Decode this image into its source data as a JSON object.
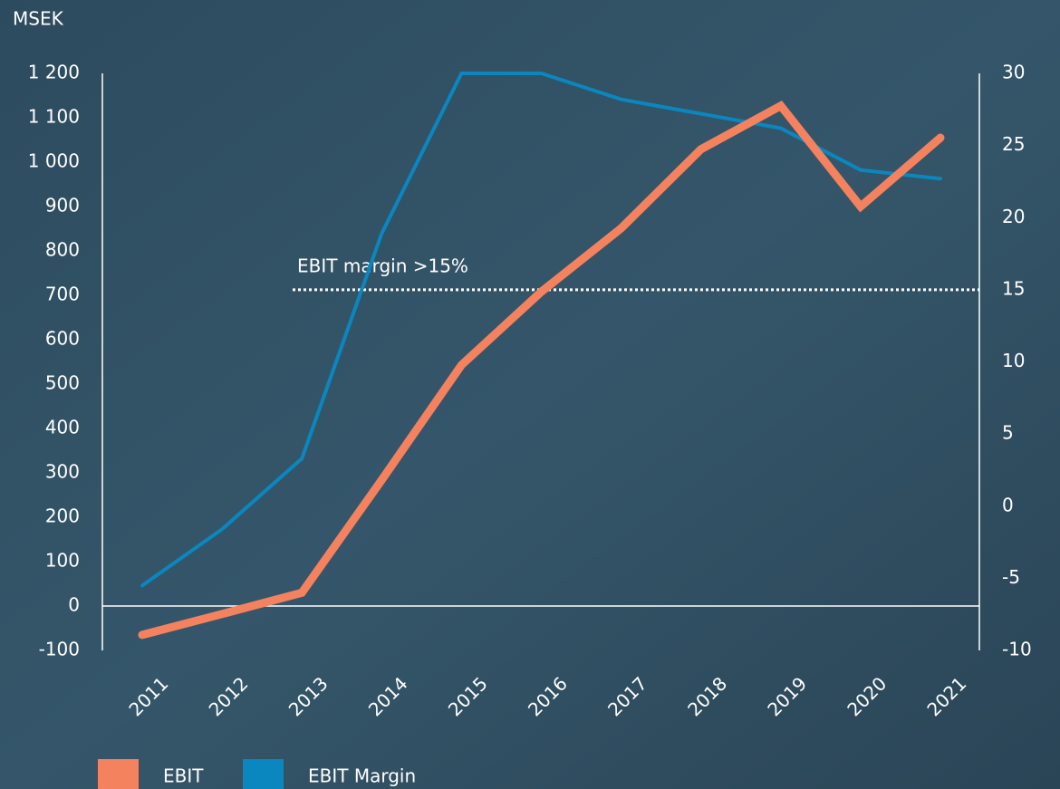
{
  "chart_data": {
    "type": "line",
    "y_axis_label": "MSEK",
    "categories": [
      "2011",
      "2012",
      "2013",
      "2014",
      "2015",
      "2016",
      "2017",
      "2018",
      "2019",
      "2020",
      "2021"
    ],
    "series": [
      {
        "name": "EBIT",
        "color": "#f4825f",
        "axis": "y",
        "values": [
          -65,
          -18,
          30,
          284,
          543,
          708,
          851,
          1029,
          1127,
          900,
          1055
        ]
      },
      {
        "name": "EBIT Margin",
        "color": "#0a87bf",
        "axis": "y2",
        "values": [
          -5.5,
          -1.6,
          3.3,
          18.9,
          30,
          30,
          28.2,
          27.2,
          26.2,
          23.3,
          22.7
        ]
      }
    ],
    "ylim": [
      -100,
      1200
    ],
    "yticks": [
      -100,
      0,
      100,
      200,
      300,
      400,
      500,
      600,
      700,
      800,
      900,
      {
        "value": 1000,
        "label": "1 000"
      },
      {
        "value": 1100,
        "label": "1 100"
      },
      {
        "value": 1200,
        "label": "1 200"
      }
    ],
    "y2lim": [
      -10,
      30
    ],
    "y2ticks": [
      -10,
      -5,
      0,
      5,
      10,
      15,
      20,
      25,
      30
    ],
    "reference_line": {
      "label": "EBIT margin >15%",
      "value": 15,
      "axis": "y2"
    },
    "legend": "bottom-left"
  }
}
